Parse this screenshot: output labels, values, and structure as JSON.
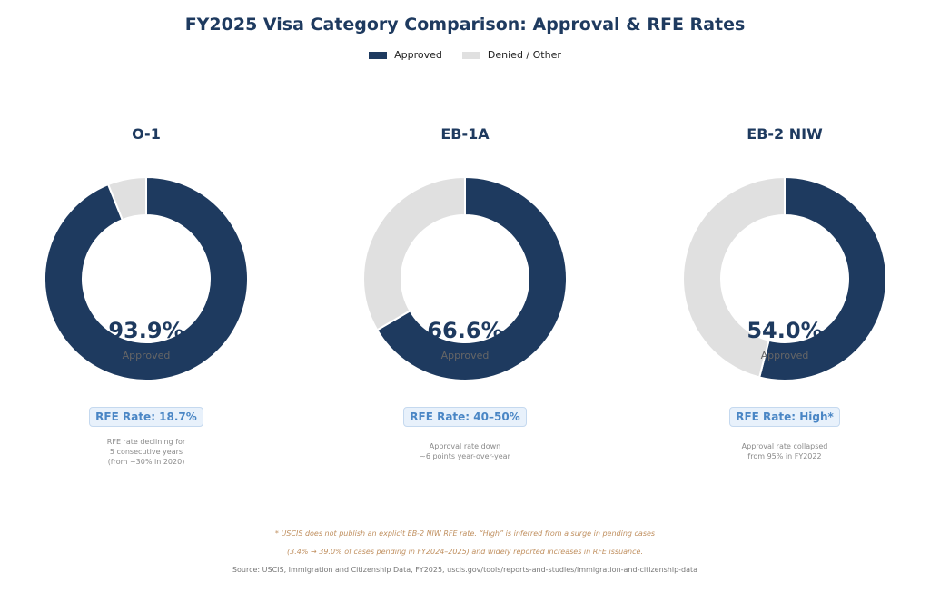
{
  "title": "FY2025 Visa Category Comparison: Approval & RFE Rates",
  "legend": [
    {
      "label": "Approved",
      "color": "#1e3a5f"
    },
    {
      "label": "Denied / Other",
      "color": "#e0e0e0"
    }
  ],
  "colors": {
    "approved": "#1e3a5f",
    "denied": "#e0e0e0",
    "accent": "#4a86c5"
  },
  "chart_data": [
    {
      "type": "pie",
      "title": "O-1",
      "slices": [
        {
          "label": "Approved",
          "value": 93.9
        },
        {
          "label": "Denied / Other",
          "value": 6.1
        }
      ],
      "center_value": "93.9%",
      "center_label": "Approved",
      "rfe_badge": "RFE Rate: 18.7%",
      "note": "RFE rate declining for\n5 consecutive years\n(from ~30% in 2020)"
    },
    {
      "type": "pie",
      "title": "EB-1A",
      "slices": [
        {
          "label": "Approved",
          "value": 66.6
        },
        {
          "label": "Denied / Other",
          "value": 33.4
        }
      ],
      "center_value": "66.6%",
      "center_label": "Approved",
      "rfe_badge": "RFE Rate: 40–50%",
      "note": "Approval rate down\n~6 points year-over-year"
    },
    {
      "type": "pie",
      "title": "EB-2 NIW",
      "slices": [
        {
          "label": "Approved",
          "value": 54.0
        },
        {
          "label": "Denied / Other",
          "value": 46.0
        }
      ],
      "center_value": "54.0%",
      "center_label": "Approved",
      "rfe_badge": "RFE Rate: High*",
      "note": "Approval rate collapsed\nfrom 95% in FY2022"
    }
  ],
  "footnote_lines": [
    "* USCIS does not publish an explicit EB-2 NIW RFE rate. “High” is inferred from a surge in pending cases",
    "(3.4% → 39.0% of cases pending in FY2024–2025) and widely reported increases in RFE issuance."
  ],
  "source": "Source: USCIS, Immigration and Citizenship Data, FY2025, uscis.gov/tools/reports-and-studies/immigration-and-citizenship-data"
}
